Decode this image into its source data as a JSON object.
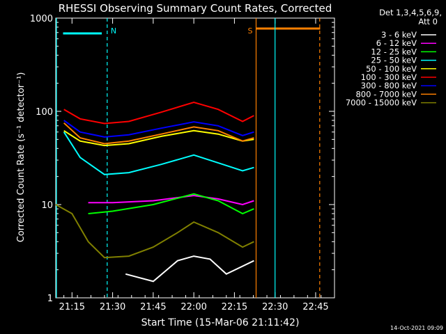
{
  "chart_data": {
    "type": "line",
    "title": "RHESSI Observing Summary Count Rates, Corrected",
    "xlabel": "Start Time (15-Mar-06 21:11:42)",
    "ylabel": "Corrected Count Rate (s⁻¹ detector⁻¹)",
    "yscale": "log",
    "ylim": [
      1,
      1000
    ],
    "xlim_minutes": [
      21.15,
      22.866
    ],
    "x_ticks": [
      "21:15",
      "21:30",
      "21:45",
      "22:00",
      "22:15",
      "22:30",
      "22:45"
    ],
    "y_ticks": [
      "1",
      "10",
      "100",
      "1000"
    ],
    "legend_header": [
      "Det 1,3,4,5,6,9,",
      "Att 0"
    ],
    "legend_position": "right",
    "timestamp": "14-Oct-2021 09:09",
    "flags": [
      {
        "label": "N",
        "color": "#00ffff",
        "bar_start": "21:11:42",
        "bar_end": "21:26:00",
        "line": "21:28:00"
      },
      {
        "label": "S",
        "color": "#ff8000",
        "bar_start": "22:23:00",
        "bar_end": "22:46:40",
        "line": "22:23:00"
      }
    ],
    "series": [
      {
        "name": "3 - 6 keV",
        "color": "#ffffff",
        "values": [
          [
            21.58,
            1.8
          ],
          [
            21.75,
            1.5
          ],
          [
            21.9,
            2.5
          ],
          [
            22.0,
            2.8
          ],
          [
            22.1,
            2.6
          ],
          [
            22.2,
            1.8
          ],
          [
            22.37,
            2.5
          ]
        ]
      },
      {
        "name": "6 - 12 keV",
        "color": "#ff00ff",
        "values": [
          [
            21.35,
            10.5
          ],
          [
            21.5,
            10.5
          ],
          [
            21.75,
            11
          ],
          [
            22.0,
            12.5
          ],
          [
            22.15,
            11.5
          ],
          [
            22.3,
            10
          ],
          [
            22.37,
            11
          ]
        ]
      },
      {
        "name": "12 - 25 keV",
        "color": "#00ff00",
        "values": [
          [
            21.35,
            8
          ],
          [
            21.5,
            8.5
          ],
          [
            21.75,
            10
          ],
          [
            22.0,
            13
          ],
          [
            22.15,
            11
          ],
          [
            22.3,
            8
          ],
          [
            22.37,
            9
          ]
        ]
      },
      {
        "name": "25 - 50 keV",
        "color": "#00ffff",
        "values": [
          [
            21.2,
            60
          ],
          [
            21.3,
            32
          ],
          [
            21.45,
            21
          ],
          [
            21.6,
            22
          ],
          [
            21.8,
            27
          ],
          [
            22.0,
            34
          ],
          [
            22.15,
            28
          ],
          [
            22.3,
            23
          ],
          [
            22.37,
            25
          ]
        ]
      },
      {
        "name": "50 - 100 keV",
        "color": "#ffff00",
        "values": [
          [
            21.2,
            62
          ],
          [
            21.3,
            48
          ],
          [
            21.45,
            43
          ],
          [
            21.6,
            45
          ],
          [
            21.8,
            54
          ],
          [
            22.0,
            62
          ],
          [
            22.15,
            57
          ],
          [
            22.3,
            48
          ],
          [
            22.37,
            50
          ]
        ]
      },
      {
        "name": "100 - 300 keV",
        "color": "#ff0000",
        "values": [
          [
            21.2,
            105
          ],
          [
            21.3,
            83
          ],
          [
            21.45,
            74
          ],
          [
            21.6,
            78
          ],
          [
            21.8,
            98
          ],
          [
            22.0,
            125
          ],
          [
            22.15,
            105
          ],
          [
            22.3,
            78
          ],
          [
            22.37,
            90
          ]
        ]
      },
      {
        "name": "300 - 800 keV",
        "color": "#0000ff",
        "values": [
          [
            21.2,
            80
          ],
          [
            21.3,
            60
          ],
          [
            21.45,
            53
          ],
          [
            21.6,
            56
          ],
          [
            21.8,
            66
          ],
          [
            22.0,
            77
          ],
          [
            22.15,
            70
          ],
          [
            22.3,
            55
          ],
          [
            22.37,
            60
          ]
        ]
      },
      {
        "name": "800 - 7000 keV",
        "color": "#ff8000",
        "values": [
          [
            21.2,
            75
          ],
          [
            21.3,
            52
          ],
          [
            21.45,
            45
          ],
          [
            21.6,
            48
          ],
          [
            21.8,
            57
          ],
          [
            22.0,
            68
          ],
          [
            22.15,
            62
          ],
          [
            22.3,
            48
          ],
          [
            22.37,
            52
          ]
        ]
      },
      {
        "name": "7000 - 15000 keV",
        "color": "#808000",
        "values": [
          [
            21.15,
            10
          ],
          [
            21.25,
            8
          ],
          [
            21.35,
            4
          ],
          [
            21.45,
            2.7
          ],
          [
            21.6,
            2.8
          ],
          [
            21.75,
            3.5
          ],
          [
            21.9,
            5
          ],
          [
            22.0,
            6.5
          ],
          [
            22.15,
            5
          ],
          [
            22.3,
            3.5
          ],
          [
            22.37,
            4
          ]
        ]
      }
    ]
  }
}
